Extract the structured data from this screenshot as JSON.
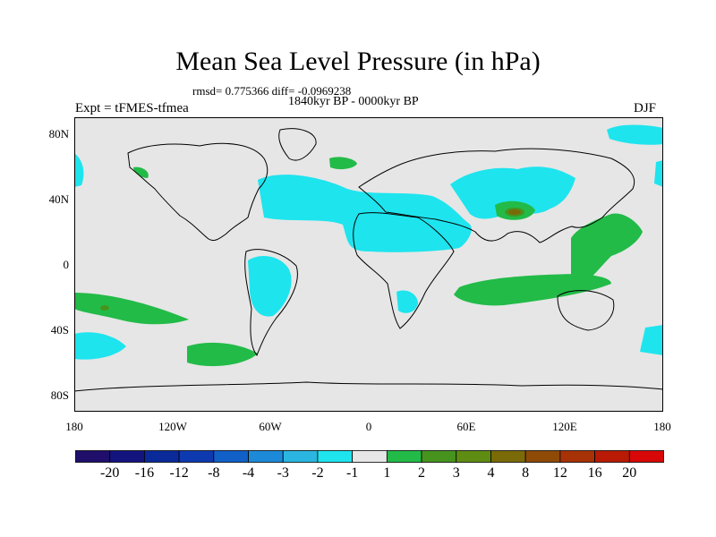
{
  "title": "Mean Sea Level Pressure (in hPa)",
  "stats": "rmsd= 0.775366 diff= -0.0969238",
  "period": "1840kyr BP - 0000kyr BP",
  "expt": "Expt = tFMES-tfmea",
  "season": "DJF",
  "lat_labels": [
    "80N",
    "40N",
    "0",
    "40S",
    "80S"
  ],
  "lon_labels": [
    "180",
    "120W",
    "60W",
    "0",
    "60E",
    "120E",
    "180"
  ],
  "colorbar": {
    "colors": [
      "#1f0f6b",
      "#14147f",
      "#0a2a9a",
      "#0e3ab0",
      "#1060c8",
      "#1c8ad8",
      "#2ab6e0",
      "#1ee4ee",
      "#e6e6e6",
      "#22bb48",
      "#46941e",
      "#5f8c12",
      "#7a6a08",
      "#8f4a08",
      "#a63206",
      "#b81a04",
      "#d80808"
    ],
    "labels": [
      "-20",
      "-16",
      "-12",
      "-8",
      "-4",
      "-3",
      "-2",
      "-1",
      "1",
      "2",
      "3",
      "4",
      "8",
      "12",
      "16",
      "20"
    ]
  },
  "palette": {
    "ocean": "#e6e6e6",
    "neg": "#1ee4ee",
    "pos": "#22bb48",
    "pos3": "#46941e",
    "pos8": "#7a6a08"
  }
}
